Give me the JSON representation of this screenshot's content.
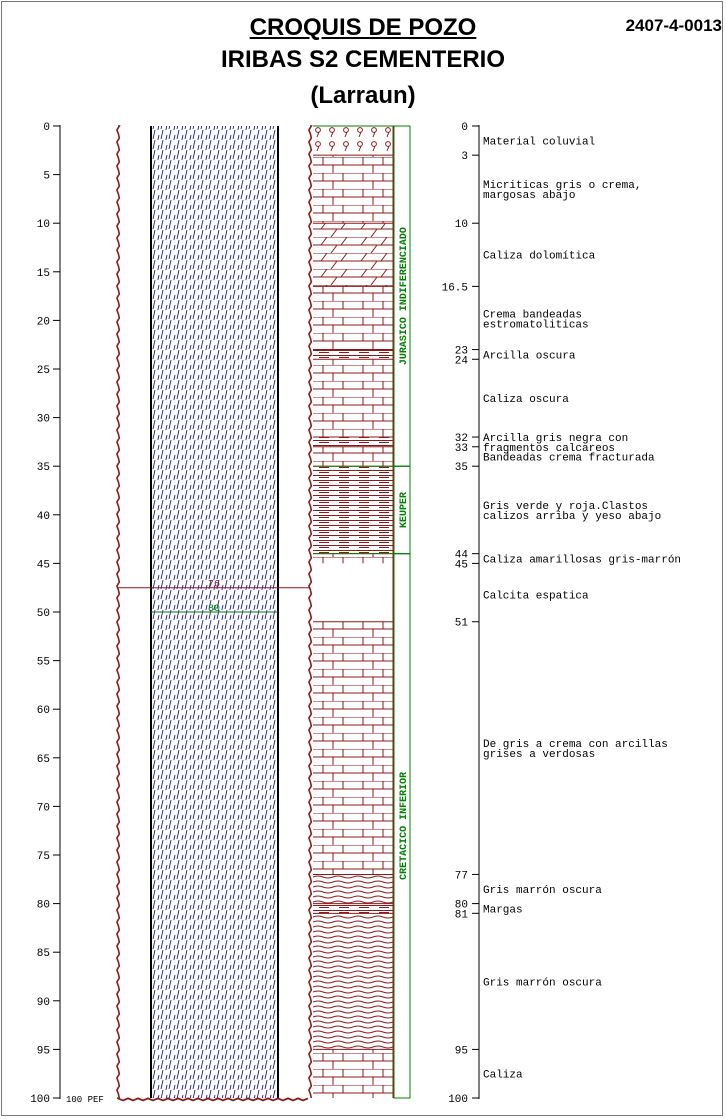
{
  "header": {
    "title": "CROQUIS DE POZO",
    "subtitle": "IRIBAS S2 CEMENTERIO",
    "location": "(Larraun)",
    "code": "2407-4-0013"
  },
  "depth_scale": {
    "max": 100,
    "ticks": [
      "0",
      "5",
      "10",
      "15",
      "20",
      "25",
      "30",
      "35",
      "40",
      "45",
      "50",
      "55",
      "60",
      "65",
      "70",
      "75",
      "80",
      "85",
      "90",
      "95",
      "100"
    ],
    "bottom_label": "100 PEF"
  },
  "well": {
    "level_1": {
      "depth": 47.5,
      "label": "76"
    },
    "level_2": {
      "depth": 50,
      "label": "80"
    }
  },
  "formations": [
    {
      "name": "JURASICO INDIFERENCIADO",
      "top": 0,
      "bottom": 35
    },
    {
      "name": "KEUPER",
      "top": 35,
      "bottom": 44
    },
    {
      "name": "CRETACICO INFERIOR",
      "top": 44,
      "bottom": 100
    }
  ],
  "lithology": [
    {
      "top": 0,
      "bottom": 3,
      "pattern": "conglomerate"
    },
    {
      "top": 3,
      "bottom": 10,
      "pattern": "limestone"
    },
    {
      "top": 10,
      "bottom": 16.5,
      "pattern": "dolomite"
    },
    {
      "top": 16.5,
      "bottom": 23,
      "pattern": "limestone"
    },
    {
      "top": 23,
      "bottom": 24,
      "pattern": "clay"
    },
    {
      "top": 24,
      "bottom": 32,
      "pattern": "limestone"
    },
    {
      "top": 32,
      "bottom": 33,
      "pattern": "clay"
    },
    {
      "top": 33,
      "bottom": 35,
      "pattern": "limestone"
    },
    {
      "top": 35,
      "bottom": 44,
      "pattern": "clay"
    },
    {
      "top": 44,
      "bottom": 45,
      "pattern": "limestone"
    },
    {
      "top": 45,
      "bottom": 51,
      "pattern": "blank"
    },
    {
      "top": 51,
      "bottom": 77,
      "pattern": "limestone"
    },
    {
      "top": 77,
      "bottom": 80,
      "pattern": "marl"
    },
    {
      "top": 80,
      "bottom": 81,
      "pattern": "clay"
    },
    {
      "top": 81,
      "bottom": 95,
      "pattern": "marl"
    },
    {
      "top": 95,
      "bottom": 100,
      "pattern": "limestone"
    }
  ],
  "boundary_labels": [
    "0",
    "3",
    "10",
    "16.5",
    "23",
    "24",
    "32",
    "33",
    "35",
    "44",
    "45",
    "51",
    "77",
    "80",
    "81",
    "95",
    "100"
  ],
  "boundaries": [
    0,
    3,
    10,
    16.5,
    23,
    24,
    32,
    33,
    35,
    44,
    45,
    51,
    77,
    80,
    81,
    95,
    100
  ],
  "descriptions": [
    {
      "depth": 1.5,
      "lines": [
        "Material coluvial"
      ]
    },
    {
      "depth": 6.5,
      "lines": [
        "Micriticas gris o crema,",
        "margosas abajo"
      ]
    },
    {
      "depth": 13.2,
      "lines": [
        "Caliza dolomítica"
      ]
    },
    {
      "depth": 19.8,
      "lines": [
        "Crema bandeadas",
        "estromatoliticas"
      ]
    },
    {
      "depth": 23.5,
      "lines": [
        "Arcilla oscura"
      ]
    },
    {
      "depth": 28,
      "lines": [
        "Caliza oscura"
      ]
    },
    {
      "depth": 32.5,
      "lines": [
        "Arcilla gris negra con",
        "fragmentos calcareos"
      ]
    },
    {
      "depth": 34,
      "lines": [
        "Bandeadas crema fracturada"
      ]
    },
    {
      "depth": 39.5,
      "lines": [
        "Gris verde y roja.Clastos",
        "calizos arriba y yeso abajo"
      ]
    },
    {
      "depth": 44.5,
      "lines": [
        "Caliza amarillosas gris-marrón"
      ]
    },
    {
      "depth": 48.2,
      "lines": [
        "Calcita espatica"
      ]
    },
    {
      "depth": 64,
      "lines": [
        "De gris a crema con arcillas",
        "grises a verdosas"
      ]
    },
    {
      "depth": 78.5,
      "lines": [
        "Gris marrón oscura"
      ]
    },
    {
      "depth": 80.5,
      "lines": [
        "Margas"
      ]
    },
    {
      "depth": 88,
      "lines": [
        "Gris marrón oscura"
      ]
    },
    {
      "depth": 97.5,
      "lines": [
        "Caliza"
      ]
    }
  ],
  "colors": {
    "lithology": "#8b1a1a",
    "fill": "#1a1aa0",
    "formation": "#008000",
    "casing": "#8b1a1a",
    "axis": "#000000"
  }
}
